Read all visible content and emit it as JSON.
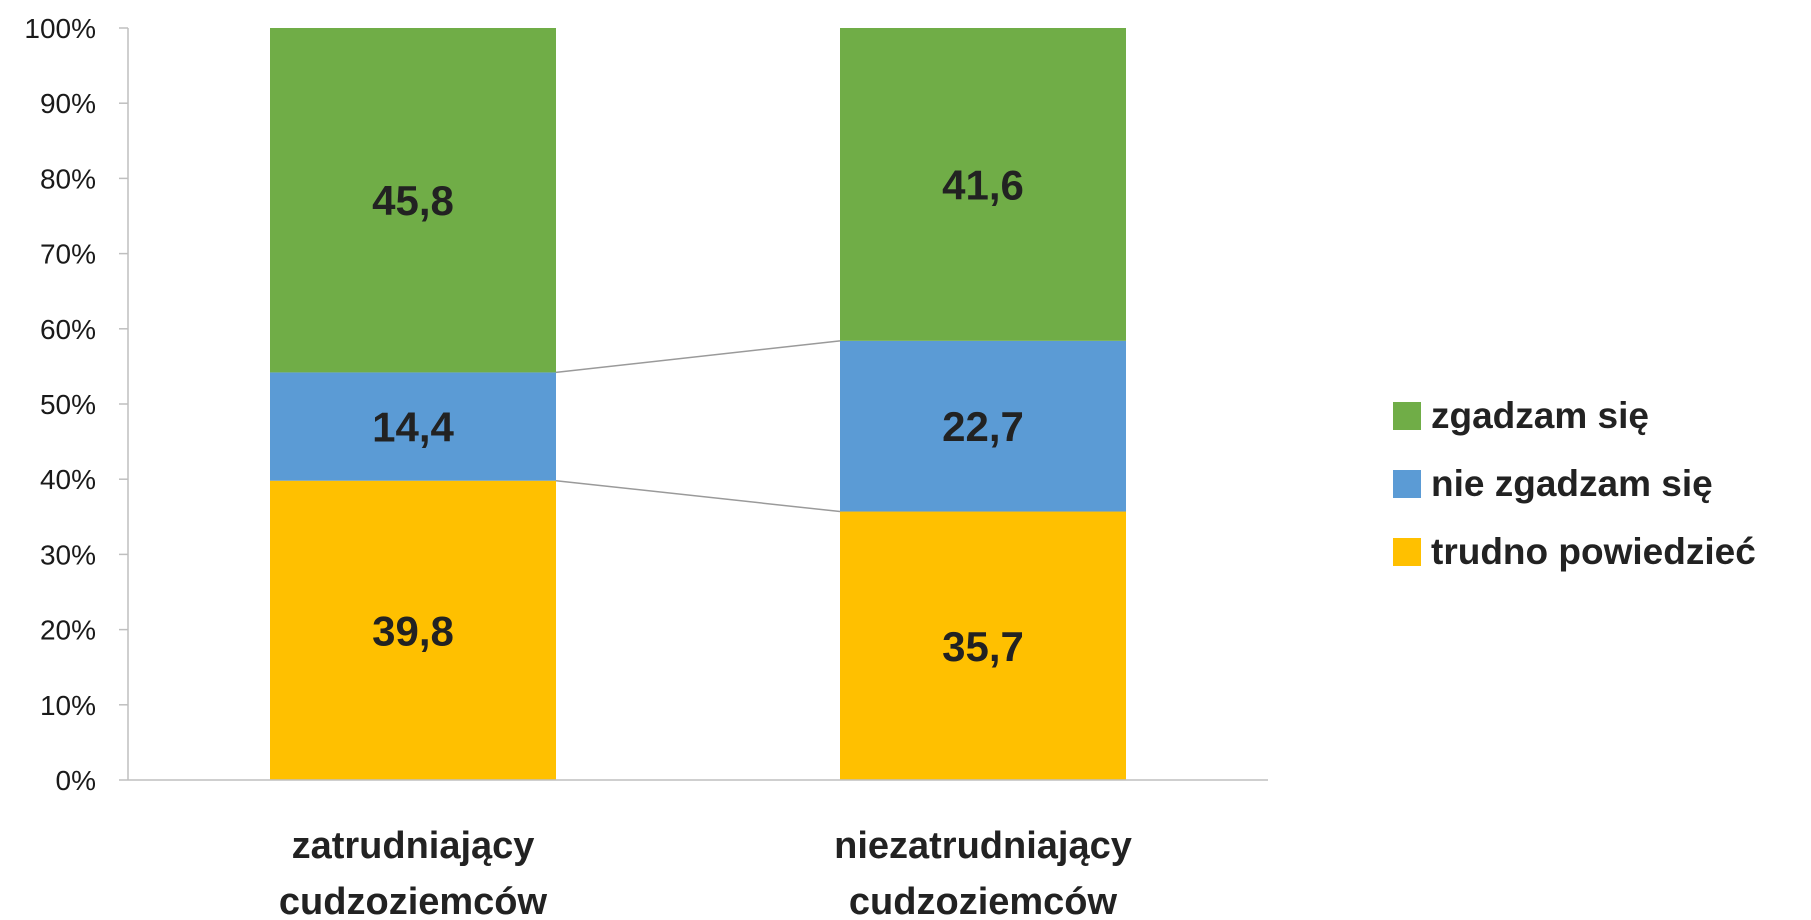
{
  "chart_data": {
    "type": "bar",
    "stacked": true,
    "percent_stacked": true,
    "categories": [
      [
        "zatrudniający",
        "cudzoziemców"
      ],
      [
        "niezatrudniający",
        "cudzoziemców"
      ]
    ],
    "series": [
      {
        "name": "trudno powiedzieć",
        "values": [
          39.8,
          35.7
        ],
        "color": "#FFC000"
      },
      {
        "name": "nie zgadzam się",
        "values": [
          14.4,
          22.7
        ],
        "color": "#5B9BD5"
      },
      {
        "name": "zgadzam się",
        "values": [
          45.8,
          41.6
        ],
        "color": "#70AD47"
      }
    ],
    "data_labels": [
      [
        "39,8",
        "35,7"
      ],
      [
        "14,4",
        "22,7"
      ],
      [
        "45,8",
        "41,6"
      ]
    ],
    "legend_order": [
      "zgadzam się",
      "nie zgadzam się",
      "trudno powiedzieć"
    ],
    "ylim": [
      0,
      100
    ],
    "yticks": [
      "0%",
      "10%",
      "20%",
      "30%",
      "40%",
      "50%",
      "60%",
      "70%",
      "80%",
      "90%",
      "100%"
    ],
    "series_lines": true,
    "grid": false,
    "legend_position": "right"
  }
}
